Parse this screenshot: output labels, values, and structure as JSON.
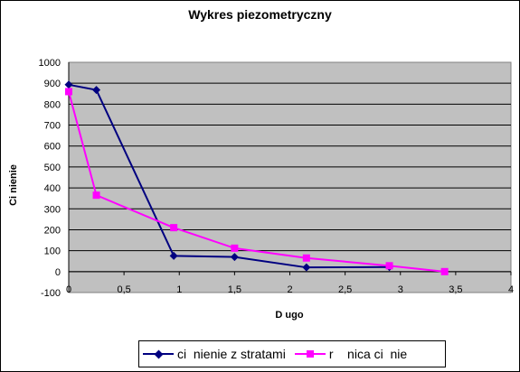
{
  "chart_data": {
    "type": "line",
    "title": "Wykres piezometryczny",
    "xlabel": "D ugo",
    "ylabel": "Ci nienie",
    "xlim": [
      0,
      4
    ],
    "ylim": [
      -100,
      1000
    ],
    "x_ticks": [
      "0",
      "0,5",
      "1",
      "1,5",
      "2",
      "2,5",
      "3",
      "3,5",
      "4"
    ],
    "y_ticks": [
      "-100",
      "0",
      "100",
      "200",
      "300",
      "400",
      "500",
      "600",
      "700",
      "800",
      "900",
      "1000"
    ],
    "grid": true,
    "legend_position": "bottom",
    "plot_background": "#c0c0c0",
    "series": [
      {
        "name": "ci  nienie z stratami",
        "color": "#000080",
        "marker": "diamond",
        "x": [
          0,
          0.25,
          0.95,
          1.5,
          2.15,
          2.9
        ],
        "y": [
          893,
          868,
          75,
          70,
          20,
          22
        ]
      },
      {
        "name": "r    nica ci  nie",
        "color": "#ff00ff",
        "marker": "square",
        "x": [
          0,
          0.25,
          0.95,
          1.5,
          2.15,
          2.9,
          3.4
        ],
        "y": [
          860,
          365,
          210,
          112,
          65,
          28,
          0
        ]
      }
    ]
  }
}
